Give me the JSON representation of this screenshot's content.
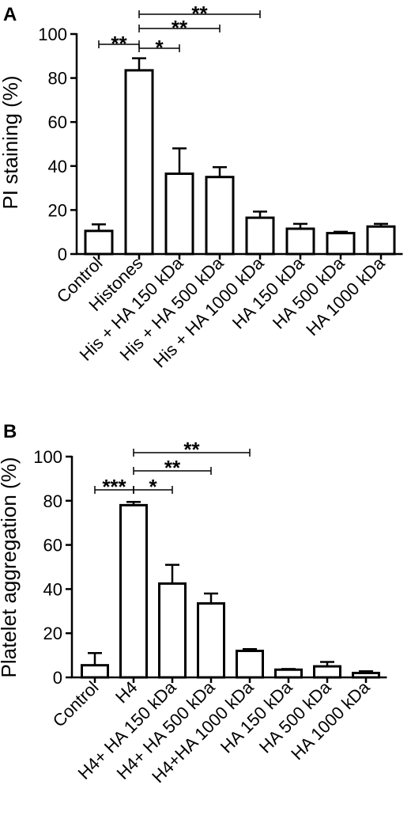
{
  "chart_data": [
    {
      "panel": "A",
      "type": "bar",
      "ylabel": "PI staining  (%)",
      "ylim": [
        0,
        100
      ],
      "yticks": [
        0,
        20,
        40,
        60,
        80,
        100
      ],
      "categories": [
        "Control",
        "Histones",
        "His + HA 150 kDa",
        "His + HA 500 kDa",
        "His + HA 1000 kDa",
        "HA 150 kDa",
        "HA 500 kDa",
        "HA 1000 kDa"
      ],
      "values": [
        10.5,
        83.5,
        36.5,
        35,
        16.5,
        11.5,
        9.5,
        12.5
      ],
      "errors": [
        3,
        5.5,
        11.5,
        4.5,
        2.8,
        2.2,
        0.6,
        1.2
      ],
      "significance": [
        {
          "from": 0,
          "to": 1,
          "label": "**"
        },
        {
          "from": 1,
          "to": 2,
          "label": "*"
        },
        {
          "from": 1,
          "to": 3,
          "label": "**"
        },
        {
          "from": 1,
          "to": 4,
          "label": "**"
        }
      ]
    },
    {
      "panel": "B",
      "type": "bar",
      "ylabel": "Platelet aggregation  (%)",
      "ylim": [
        0,
        100
      ],
      "yticks": [
        0,
        20,
        40,
        60,
        80,
        100
      ],
      "categories": [
        "Control",
        "H4",
        "H4+ HA 150 kDa",
        "H4+ HA 500 kDa",
        "H4+HA 1000 kDa",
        "HA 150 kDa",
        "HA 500 kDa",
        "HA 1000 kDa"
      ],
      "values": [
        5.5,
        78,
        42.5,
        33.5,
        12,
        3.5,
        5,
        2
      ],
      "errors": [
        5.5,
        1.5,
        8.5,
        4.5,
        0.8,
        0.3,
        2,
        0.8
      ],
      "significance": [
        {
          "from": 0,
          "to": 1,
          "label": "***"
        },
        {
          "from": 1,
          "to": 2,
          "label": "*"
        },
        {
          "from": 1,
          "to": 3,
          "label": "**"
        },
        {
          "from": 1,
          "to": 4,
          "label": "**"
        }
      ]
    }
  ]
}
